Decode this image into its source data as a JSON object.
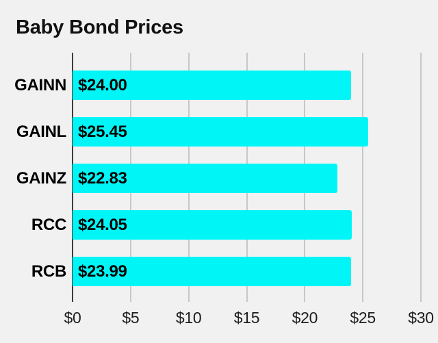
{
  "chart_data": {
    "type": "bar",
    "orientation": "horizontal",
    "title": "Baby Bond Prices",
    "categories": [
      "GAINN",
      "GAINL",
      "GAINZ",
      "RCC",
      "RCB"
    ],
    "values": [
      24.0,
      25.45,
      22.83,
      24.05,
      23.99
    ],
    "value_labels": [
      "$24.00",
      "$25.45",
      "$22.83",
      "$24.05",
      "$23.99"
    ],
    "xlabel": "",
    "ylabel": "",
    "xlim": [
      0,
      30
    ],
    "x_tick_values": [
      0,
      5,
      10,
      15,
      20,
      25,
      30
    ],
    "x_ticks": [
      "$0",
      "$5",
      "$10",
      "$15",
      "$20",
      "$25",
      "$30"
    ],
    "grid": true,
    "legend": "none",
    "colors": {
      "bar": "#00f6f6",
      "background": "#f1f1f1",
      "gridline": "#c7c7c7",
      "zero_axis_line": "#3d3d3d",
      "text": "#000000"
    }
  }
}
